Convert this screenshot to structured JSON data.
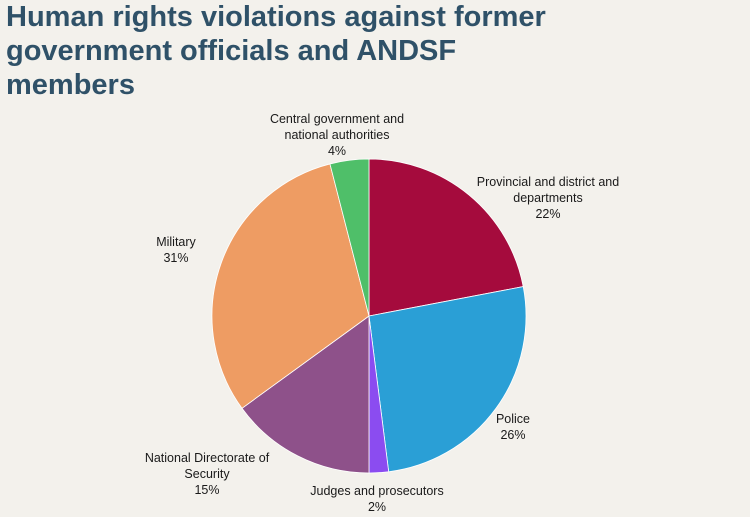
{
  "title_lines": [
    "Human rights violations against former",
    "government officials and ANDSF",
    "members"
  ],
  "chart_data": {
    "type": "pie",
    "title": "Human rights violations against former government officials and ANDSF members",
    "start": "12 o'clock",
    "direction": "clockwise",
    "slices": [
      {
        "label_lines": [
          "Provincial and district and",
          "departments"
        ],
        "value": 22,
        "value_label": "22%",
        "color": "#a50b3d"
      },
      {
        "label_lines": [
          "Police"
        ],
        "value": 26,
        "value_label": "26%",
        "color": "#2a9fd6"
      },
      {
        "label_lines": [
          "Judges and prosecutors"
        ],
        "value": 2,
        "value_label": "2%",
        "color": "#8b4cf0"
      },
      {
        "label_lines": [
          "National Directorate of",
          "Security"
        ],
        "value": 15,
        "value_label": "15%",
        "color": "#8e518a"
      },
      {
        "label_lines": [
          "Military"
        ],
        "value": 31,
        "value_label": "31%",
        "color": "#ee9c63"
      },
      {
        "label_lines": [
          "Central government and",
          "national authorities"
        ],
        "value": 4,
        "value_label": "4%",
        "color": "#4fbf69"
      }
    ]
  }
}
